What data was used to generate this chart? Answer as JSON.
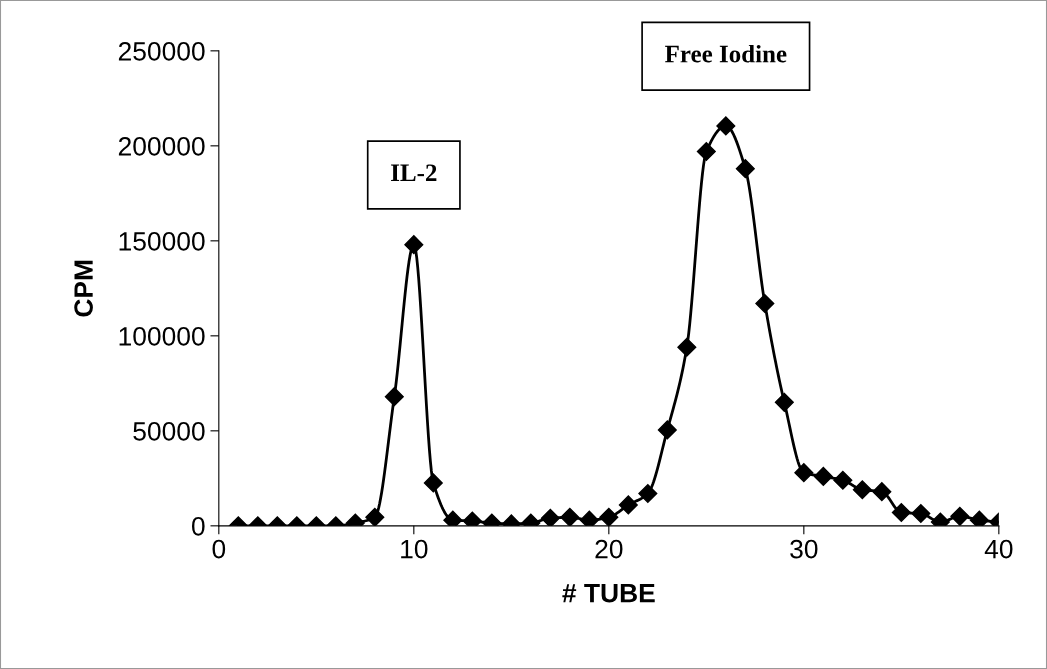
{
  "chart_data": {
    "type": "line",
    "xlabel": "# TUBE",
    "ylabel": "CPM",
    "x": [
      1,
      2,
      3,
      4,
      5,
      6,
      7,
      8,
      9,
      10,
      11,
      12,
      13,
      14,
      15,
      16,
      17,
      18,
      19,
      20,
      21,
      22,
      23,
      24,
      25,
      26,
      27,
      28,
      29,
      30,
      31,
      32,
      33,
      34,
      35,
      36,
      37,
      38,
      39,
      40
    ],
    "series": [
      {
        "color": "#000000",
        "values": [
          0,
          0,
          0,
          0,
          0,
          0,
          1500,
          4500,
          68000,
          148000,
          22600,
          3000,
          2500,
          1500,
          1000,
          1500,
          4000,
          4500,
          3000,
          4500,
          11000,
          17000,
          50500,
          94000,
          197000,
          210500,
          188000,
          117000,
          65000,
          28000,
          26000,
          24000,
          19000,
          18000,
          7000,
          6500,
          2000,
          5000,
          3000,
          2000
        ]
      }
    ],
    "marker": "diamond",
    "line_style": "solid",
    "grid": false,
    "legend": false,
    "xlim": [
      0,
      40
    ],
    "xticks": [
      0,
      10,
      20,
      30,
      40
    ],
    "ylim": [
      0,
      250000
    ],
    "yticks": [
      0,
      50000,
      100000,
      150000,
      200000,
      250000
    ],
    "annotations": [
      {
        "text": "IL-2",
        "x": 10,
        "y": 148000
      },
      {
        "text": "Free Iodine",
        "x": 26,
        "y": 210500
      }
    ]
  }
}
